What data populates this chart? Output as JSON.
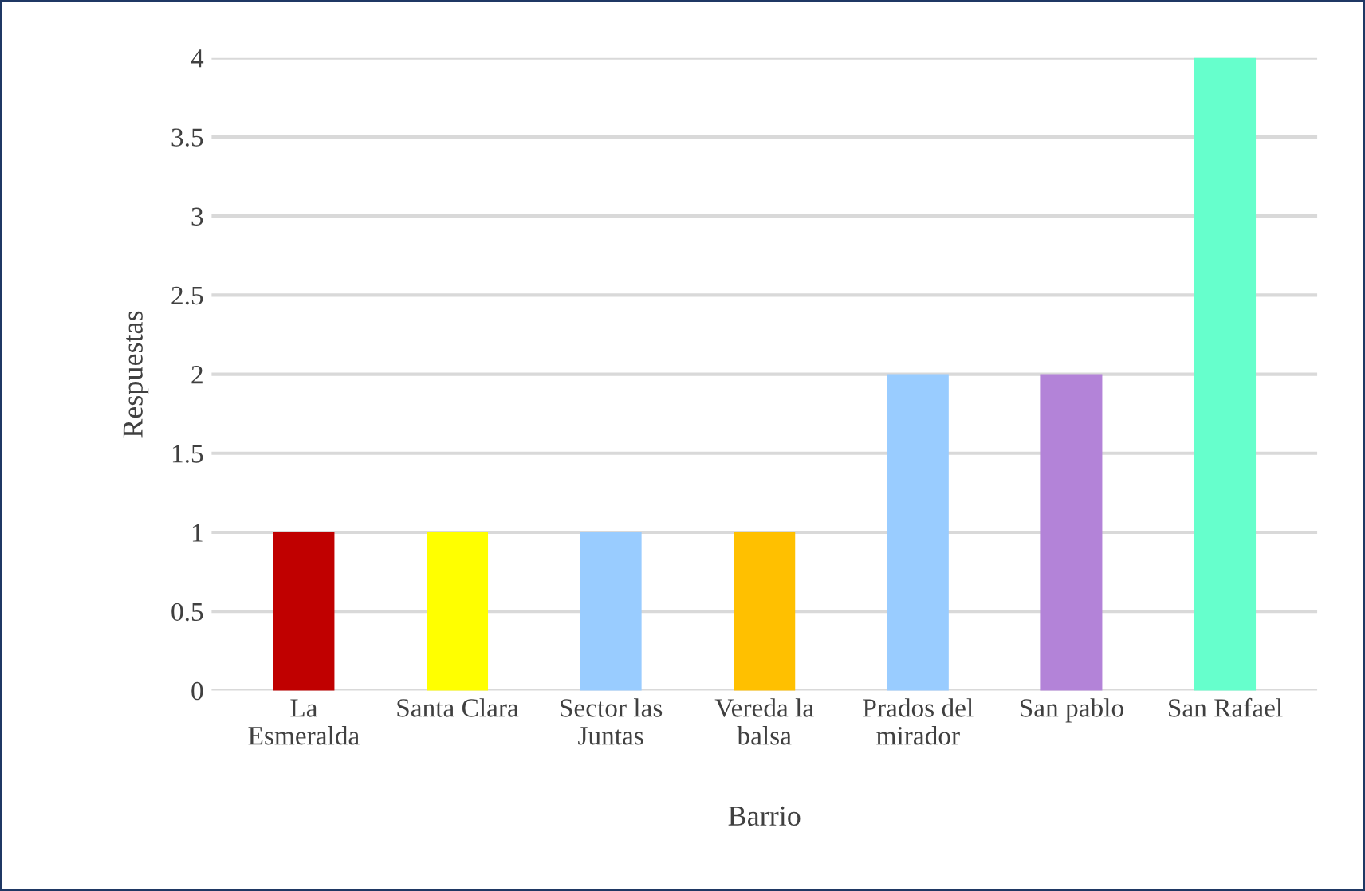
{
  "chart_data": {
    "type": "bar",
    "xlabel": "Barrio",
    "ylabel": "Respuestas",
    "categories": [
      "La Esmeralda",
      "Santa Clara",
      "Sector las Juntas",
      "Vereda la balsa",
      "Prados del mirador",
      "San pablo",
      "San Rafael"
    ],
    "values": [
      1,
      1,
      1,
      1,
      2,
      2,
      4
    ],
    "colors": [
      "#c00000",
      "#ffff00",
      "#99ccff",
      "#ffc000",
      "#99ccff",
      "#b383d8",
      "#66ffcc"
    ],
    "ylim": [
      0,
      4
    ],
    "yticks": [
      0,
      0.5,
      1,
      1.5,
      2,
      2.5,
      3,
      3.5,
      4
    ],
    "grid": "y",
    "legend": false
  }
}
